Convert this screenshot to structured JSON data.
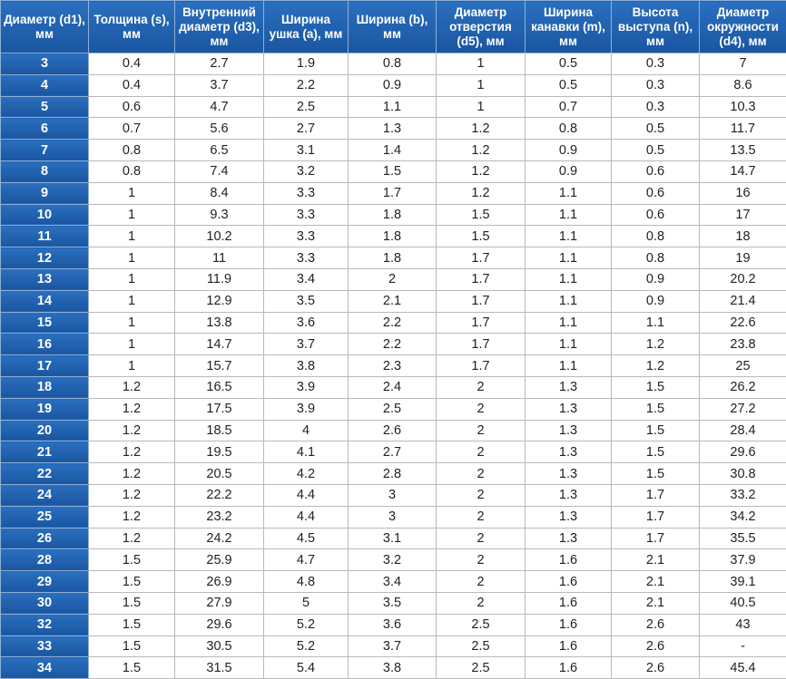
{
  "table": {
    "header": [
      "Диаметр (d1), мм",
      "Толщина (s), мм",
      "Внутренний диаметр (d3), мм",
      "Ширина ушка (a), мм",
      "Ширина (b), мм",
      "Диаметр отверстия (d5), мм",
      "Ширина канавки (m), мм",
      "Высота выступа (n), мм",
      "Диаметр окружности (d4), мм"
    ],
    "rows": [
      [
        "3",
        "0.4",
        "2.7",
        "1.9",
        "0.8",
        "1",
        "0.5",
        "0.3",
        "7"
      ],
      [
        "4",
        "0.4",
        "3.7",
        "2.2",
        "0.9",
        "1",
        "0.5",
        "0.3",
        "8.6"
      ],
      [
        "5",
        "0.6",
        "4.7",
        "2.5",
        "1.1",
        "1",
        "0.7",
        "0.3",
        "10.3"
      ],
      [
        "6",
        "0.7",
        "5.6",
        "2.7",
        "1.3",
        "1.2",
        "0.8",
        "0.5",
        "11.7"
      ],
      [
        "7",
        "0.8",
        "6.5",
        "3.1",
        "1.4",
        "1.2",
        "0.9",
        "0.5",
        "13.5"
      ],
      [
        "8",
        "0.8",
        "7.4",
        "3.2",
        "1.5",
        "1.2",
        "0.9",
        "0.6",
        "14.7"
      ],
      [
        "9",
        "1",
        "8.4",
        "3.3",
        "1.7",
        "1.2",
        "1.1",
        "0.6",
        "16"
      ],
      [
        "10",
        "1",
        "9.3",
        "3.3",
        "1.8",
        "1.5",
        "1.1",
        "0.6",
        "17"
      ],
      [
        "11",
        "1",
        "10.2",
        "3.3",
        "1.8",
        "1.5",
        "1.1",
        "0.8",
        "18"
      ],
      [
        "12",
        "1",
        "11",
        "3.3",
        "1.8",
        "1.7",
        "1.1",
        "0.8",
        "19"
      ],
      [
        "13",
        "1",
        "11.9",
        "3.4",
        "2",
        "1.7",
        "1.1",
        "0.9",
        "20.2"
      ],
      [
        "14",
        "1",
        "12.9",
        "3.5",
        "2.1",
        "1.7",
        "1.1",
        "0.9",
        "21.4"
      ],
      [
        "15",
        "1",
        "13.8",
        "3.6",
        "2.2",
        "1.7",
        "1.1",
        "1.1",
        "22.6"
      ],
      [
        "16",
        "1",
        "14.7",
        "3.7",
        "2.2",
        "1.7",
        "1.1",
        "1.2",
        "23.8"
      ],
      [
        "17",
        "1",
        "15.7",
        "3.8",
        "2.3",
        "1.7",
        "1.1",
        "1.2",
        "25"
      ],
      [
        "18",
        "1.2",
        "16.5",
        "3.9",
        "2.4",
        "2",
        "1.3",
        "1.5",
        "26.2"
      ],
      [
        "19",
        "1.2",
        "17.5",
        "3.9",
        "2.5",
        "2",
        "1.3",
        "1.5",
        "27.2"
      ],
      [
        "20",
        "1.2",
        "18.5",
        "4",
        "2.6",
        "2",
        "1.3",
        "1.5",
        "28.4"
      ],
      [
        "21",
        "1.2",
        "19.5",
        "4.1",
        "2.7",
        "2",
        "1.3",
        "1.5",
        "29.6"
      ],
      [
        "22",
        "1.2",
        "20.5",
        "4.2",
        "2.8",
        "2",
        "1.3",
        "1.5",
        "30.8"
      ],
      [
        "24",
        "1.2",
        "22.2",
        "4.4",
        "3",
        "2",
        "1.3",
        "1.7",
        "33.2"
      ],
      [
        "25",
        "1.2",
        "23.2",
        "4.4",
        "3",
        "2",
        "1.3",
        "1.7",
        "34.2"
      ],
      [
        "26",
        "1.2",
        "24.2",
        "4.5",
        "3.1",
        "2",
        "1.3",
        "1.7",
        "35.5"
      ],
      [
        "28",
        "1.5",
        "25.9",
        "4.7",
        "3.2",
        "2",
        "1.6",
        "2.1",
        "37.9"
      ],
      [
        "29",
        "1.5",
        "26.9",
        "4.8",
        "3.4",
        "2",
        "1.6",
        "2.1",
        "39.1"
      ],
      [
        "30",
        "1.5",
        "27.9",
        "5",
        "3.5",
        "2",
        "1.6",
        "2.1",
        "40.5"
      ],
      [
        "32",
        "1.5",
        "29.6",
        "5.2",
        "3.6",
        "2.5",
        "1.6",
        "2.6",
        "43"
      ],
      [
        "33",
        "1.5",
        "30.5",
        "5.2",
        "3.7",
        "2.5",
        "1.6",
        "2.6",
        "-"
      ],
      [
        "34",
        "1.5",
        "31.5",
        "5.4",
        "3.8",
        "2.5",
        "1.6",
        "2.6",
        "45.4"
      ]
    ]
  }
}
